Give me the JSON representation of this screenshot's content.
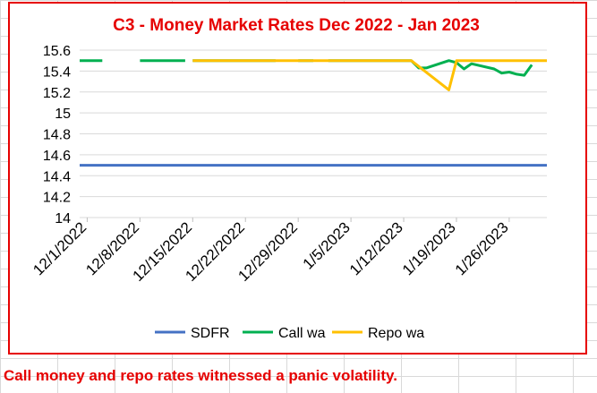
{
  "caption": "Call money and repo rates witnessed a panic volatility.",
  "chart_data": {
    "type": "line",
    "title": "C3 - Money Market Rates Dec 2022 - Jan 2023",
    "xlabel": "",
    "ylabel": "",
    "ylim": [
      14,
      15.6
    ],
    "yticks": [
      "14",
      "14.2",
      "14.4",
      "14.6",
      "14.8",
      "15",
      "15.2",
      "15.4",
      "15.6"
    ],
    "xlim": [
      "2022-11-30",
      "2023-01-31"
    ],
    "xticks": [
      "12/1/2022",
      "12/8/2022",
      "12/15/2022",
      "12/22/2022",
      "12/29/2022",
      "1/5/2023",
      "1/12/2023",
      "1/19/2023",
      "1/26/2023"
    ],
    "grid": "horizontal",
    "legend_position": "bottom",
    "colors": {
      "SDFR": "#4472c4",
      "Call wa": "#00b050",
      "Repo wa": "#ffc000",
      "title": "#e60000"
    },
    "series": [
      {
        "name": "SDFR",
        "points": [
          [
            "2022-11-30",
            14.5
          ],
          [
            "2023-01-31",
            14.5
          ]
        ]
      },
      {
        "name": "Call wa",
        "points": [
          [
            "2022-11-30",
            15.5
          ],
          [
            "2023-01-13",
            15.5
          ],
          [
            "2023-01-14",
            15.43
          ],
          [
            "2023-01-15",
            15.43
          ],
          [
            "2023-01-18",
            15.5
          ],
          [
            "2023-01-19",
            15.48
          ],
          [
            "2023-01-20",
            15.42
          ],
          [
            "2023-01-21",
            15.47
          ],
          [
            "2023-01-24",
            15.42
          ],
          [
            "2023-01-25",
            15.38
          ],
          [
            "2023-01-26",
            15.39
          ],
          [
            "2023-01-27",
            15.37
          ],
          [
            "2023-01-28",
            15.36
          ],
          [
            "2023-01-29",
            15.46
          ]
        ],
        "gaps": [
          [
            "2022-12-03",
            "2022-12-08"
          ],
          [
            "2022-12-14",
            "2022-12-15"
          ],
          [
            "2022-12-26",
            "2022-12-29"
          ],
          [
            "2022-12-31",
            "2023-01-02"
          ]
        ]
      },
      {
        "name": "Repo wa",
        "points": [
          [
            "2022-12-15",
            15.5
          ],
          [
            "2023-01-13",
            15.5
          ],
          [
            "2023-01-18",
            15.22
          ],
          [
            "2023-01-19",
            15.5
          ],
          [
            "2023-01-31",
            15.5
          ]
        ]
      }
    ]
  }
}
